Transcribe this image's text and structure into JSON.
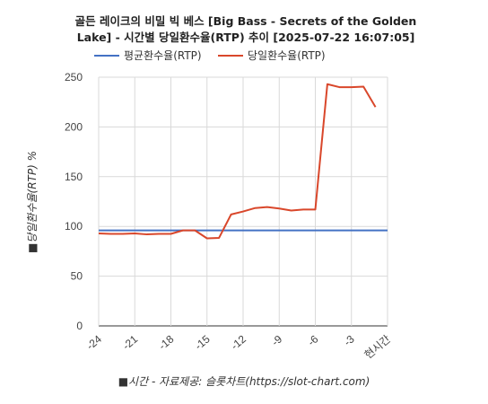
{
  "chart_data": {
    "type": "line",
    "title_lines": [
      "골든 레이크의 비밀 빅 베스 [Big Bass - Secrets of the Golden",
      "Lake] - 시간별 당일환수율(RTP) 추이 [2025-07-22 16:07:05]"
    ],
    "xlabel": "■시간 - 자료제공: 슬롯차트(https://slot-chart.com)",
    "ylabel": "■당일환수율(RTP) %",
    "x": [
      -24,
      -23,
      -22,
      -21,
      -20,
      -19,
      -18,
      -17,
      -16,
      -15,
      -14,
      -13,
      -12,
      -11,
      -10,
      -9,
      -8,
      -7,
      -6,
      -5,
      -4,
      -3,
      -2,
      -1,
      0
    ],
    "x_tick_values": [
      -24,
      -21,
      -18,
      -15,
      -12,
      -9,
      -6,
      -3,
      0
    ],
    "x_tick_labels": [
      "-24",
      "-21",
      "-18",
      "-15",
      "-12",
      "-9",
      "-6",
      "-3",
      "현시간"
    ],
    "xlim": [
      -24,
      0
    ],
    "ylim": [
      0,
      250
    ],
    "y_ticks": [
      0,
      50,
      100,
      150,
      200,
      250
    ],
    "grid": true,
    "legend_position": "top",
    "series": [
      {
        "name": "평균환수율(RTP)",
        "color": "#4472c4",
        "values": [
          96,
          96,
          96,
          96,
          96,
          96,
          96,
          96,
          96,
          96,
          96,
          96,
          96,
          96,
          96,
          96,
          96,
          96,
          96,
          96,
          96,
          96,
          96,
          96,
          96
        ]
      },
      {
        "name": "당일환수율(RTP)",
        "color": "#d9472b",
        "values": [
          93,
          92.5,
          92.5,
          93,
          92,
          92.5,
          92.5,
          96,
          96,
          88,
          88.5,
          112,
          115,
          118.5,
          119.5,
          118,
          116,
          117,
          117,
          243,
          240,
          240,
          240.5,
          220,
          null
        ]
      }
    ]
  }
}
